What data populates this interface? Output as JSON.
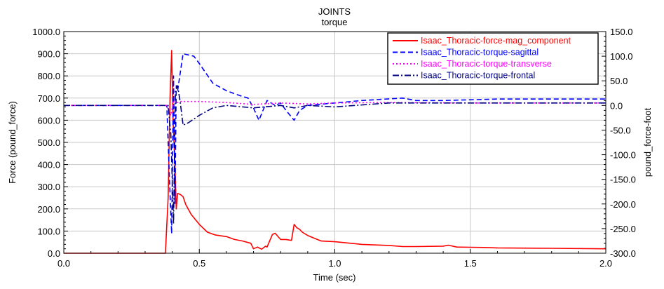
{
  "chart_data": {
    "type": "line",
    "title": "JOINTS",
    "subtitle": "torque",
    "xlabel": "Time (sec)",
    "ylabel": "Force (pound_force)",
    "y2label": "pound_force-foot",
    "xlim": [
      0.0,
      2.0
    ],
    "ylim": [
      0.0,
      1000.0
    ],
    "y2lim": [
      -300.0,
      150.0
    ],
    "x_ticks": [
      0.0,
      0.5,
      1.0,
      1.5,
      2.0
    ],
    "x_tick_labels": [
      "0.0",
      "0.5",
      "1.0",
      "1.5",
      "2.0"
    ],
    "y_ticks": [
      0,
      100,
      200,
      300,
      400,
      500,
      600,
      700,
      800,
      900,
      1000
    ],
    "y_tick_labels": [
      "0.0",
      "100.0",
      "200.0",
      "300.0",
      "400.0",
      "500.0",
      "600.0",
      "700.0",
      "800.0",
      "900.0",
      "1000.0"
    ],
    "y2_ticks": [
      -300,
      -250,
      -200,
      -150,
      -100,
      -50,
      0,
      50,
      100,
      150
    ],
    "y2_tick_labels": [
      "-300.0",
      "-250.0",
      "-200.0",
      "-150.0",
      "-100.0",
      "-50.0",
      "0.0",
      "50.0",
      "100.0",
      "150.0"
    ],
    "grid": true,
    "legend_position": "top-right",
    "series": [
      {
        "name": "Isaac_Thoracic-force-mag_component",
        "axis": "left",
        "color": "#ff0000",
        "dash": "solid",
        "x": [
          0.0,
          0.375,
          0.385,
          0.392,
          0.398,
          0.403,
          0.41,
          0.415,
          0.42,
          0.43,
          0.44,
          0.45,
          0.47,
          0.5,
          0.53,
          0.56,
          0.6,
          0.63,
          0.66,
          0.69,
          0.7,
          0.715,
          0.73,
          0.745,
          0.75,
          0.77,
          0.78,
          0.8,
          0.82,
          0.84,
          0.85,
          0.86,
          0.87,
          0.88,
          0.9,
          0.93,
          0.95,
          1.0,
          1.1,
          1.2,
          1.25,
          1.3,
          1.4,
          1.42,
          1.45,
          1.5,
          1.55,
          1.6,
          1.8,
          2.0
        ],
        "values": [
          0,
          0,
          250,
          700,
          915,
          600,
          400,
          200,
          270,
          265,
          255,
          220,
          175,
          130,
          95,
          82,
          75,
          62,
          55,
          45,
          20,
          28,
          18,
          32,
          28,
          85,
          90,
          62,
          62,
          58,
          130,
          115,
          108,
          95,
          80,
          65,
          55,
          52,
          40,
          35,
          30,
          30,
          32,
          36,
          28,
          27,
          26,
          24,
          22,
          20
        ]
      },
      {
        "name": "Isaac_Thoracic-torque-sagittal",
        "axis": "right",
        "color": "#0000ff",
        "dash": "dashed",
        "x": [
          0.0,
          0.38,
          0.39,
          0.398,
          0.405,
          0.41,
          0.415,
          0.42,
          0.44,
          0.48,
          0.5,
          0.55,
          0.6,
          0.65,
          0.68,
          0.7,
          0.72,
          0.75,
          0.78,
          0.8,
          0.82,
          0.85,
          0.87,
          0.9,
          1.0,
          1.1,
          1.25,
          1.3,
          1.4,
          1.6,
          2.0
        ],
        "values": [
          0,
          0,
          -150,
          -260,
          60,
          -200,
          40,
          30,
          105,
          100,
          85,
          45,
          30,
          20,
          15,
          -5,
          -30,
          10,
          0,
          5,
          -10,
          -30,
          -10,
          0,
          5,
          10,
          15,
          10,
          10,
          13,
          13
        ]
      },
      {
        "name": "Isaac_Thoracic-torque-transverse",
        "axis": "right",
        "color": "#ff00ff",
        "dash": "dotted",
        "x": [
          0.0,
          0.38,
          0.395,
          0.405,
          0.415,
          0.43,
          0.5,
          0.6,
          0.7,
          0.8,
          0.9,
          1.0,
          1.2,
          1.5,
          2.0
        ],
        "values": [
          0,
          0,
          -20,
          10,
          5,
          8,
          8,
          6,
          2,
          5,
          3,
          5,
          6,
          5,
          5
        ]
      },
      {
        "name": "Isaac_Thoracic-torque-frontal",
        "axis": "right",
        "color": "#000080",
        "dash": "dashdot",
        "x": [
          0.0,
          0.385,
          0.395,
          0.405,
          0.412,
          0.42,
          0.43,
          0.44,
          0.46,
          0.5,
          0.55,
          0.6,
          0.7,
          0.8,
          0.85,
          0.9,
          1.0,
          1.2,
          1.3,
          1.5,
          2.0
        ],
        "values": [
          0,
          0,
          -60,
          -240,
          30,
          40,
          5,
          -40,
          -35,
          -20,
          -5,
          0,
          -5,
          0,
          -5,
          0,
          -3,
          5,
          5,
          5,
          5
        ]
      }
    ]
  }
}
